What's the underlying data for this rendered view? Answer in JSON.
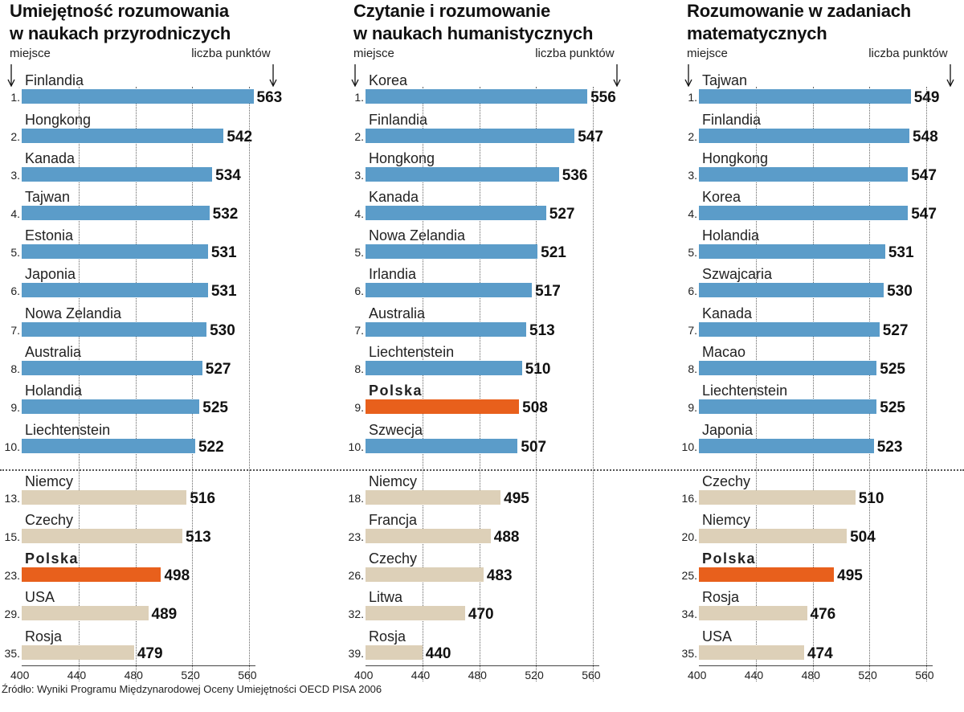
{
  "source": "Źródło: Wyniki Programu Międzynarodowej Oceny Umiejętności OECD PISA 2006",
  "labels": {
    "place": "miejsce",
    "points": "liczba punktów"
  },
  "colors": {
    "top_bar": "#5b9cc9",
    "other_bar": "#ddd0b8",
    "highlight_bar": "#e8601c"
  },
  "chart_data": [
    {
      "type": "bar",
      "title_lines": [
        "Umiejętność rozumowania",
        "w naukach przyrodniczych"
      ],
      "xlim": [
        400,
        580
      ],
      "xticks": [
        400,
        440,
        480,
        520,
        560
      ],
      "grid": true,
      "top10": [
        {
          "rank": "1.",
          "country": "Finlandia",
          "value": 563
        },
        {
          "rank": "2.",
          "country": "Hongkong",
          "value": 542
        },
        {
          "rank": "3.",
          "country": "Kanada",
          "value": 534
        },
        {
          "rank": "4.",
          "country": "Tajwan",
          "value": 532
        },
        {
          "rank": "5.",
          "country": "Estonia",
          "value": 531
        },
        {
          "rank": "6.",
          "country": "Japonia",
          "value": 531
        },
        {
          "rank": "7.",
          "country": "Nowa Zelandia",
          "value": 530
        },
        {
          "rank": "8.",
          "country": "Australia",
          "value": 527
        },
        {
          "rank": "9.",
          "country": "Holandia",
          "value": 525
        },
        {
          "rank": "10.",
          "country": "Liechtenstein",
          "value": 522
        }
      ],
      "others": [
        {
          "rank": "13.",
          "country": "Niemcy",
          "value": 516
        },
        {
          "rank": "15.",
          "country": "Czechy",
          "value": 513
        },
        {
          "rank": "23.",
          "country": "Polska",
          "value": 498,
          "highlight": true
        },
        {
          "rank": "29.",
          "country": "USA",
          "value": 489
        },
        {
          "rank": "35.",
          "country": "Rosja",
          "value": 479
        }
      ]
    },
    {
      "type": "bar",
      "title_lines": [
        "Czytanie i rozumowanie",
        "w naukach humanistycznych"
      ],
      "xlim": [
        400,
        580
      ],
      "xticks": [
        400,
        440,
        480,
        520,
        560
      ],
      "grid": true,
      "top10": [
        {
          "rank": "1.",
          "country": "Korea",
          "value": 556
        },
        {
          "rank": "2.",
          "country": "Finlandia",
          "value": 547
        },
        {
          "rank": "3.",
          "country": "Hongkong",
          "value": 536
        },
        {
          "rank": "4.",
          "country": "Kanada",
          "value": 527
        },
        {
          "rank": "5.",
          "country": "Nowa Zelandia",
          "value": 521
        },
        {
          "rank": "6.",
          "country": "Irlandia",
          "value": 517
        },
        {
          "rank": "7.",
          "country": "Australia",
          "value": 513
        },
        {
          "rank": "8.",
          "country": "Liechtenstein",
          "value": 510
        },
        {
          "rank": "9.",
          "country": "Polska",
          "value": 508,
          "highlight": true
        },
        {
          "rank": "10.",
          "country": "Szwecja",
          "value": 507
        }
      ],
      "others": [
        {
          "rank": "18.",
          "country": "Niemcy",
          "value": 495
        },
        {
          "rank": "23.",
          "country": "Francja",
          "value": 488
        },
        {
          "rank": "26.",
          "country": "Czechy",
          "value": 483
        },
        {
          "rank": "32.",
          "country": "Litwa",
          "value": 470
        },
        {
          "rank": "39.",
          "country": "Rosja",
          "value": 440
        }
      ]
    },
    {
      "type": "bar",
      "title_lines": [
        "Rozumowanie w zadaniach",
        "matematycznych"
      ],
      "xlim": [
        400,
        580
      ],
      "xticks": [
        400,
        440,
        480,
        520,
        560
      ],
      "grid": true,
      "top10": [
        {
          "rank": "1.",
          "country": "Tajwan",
          "value": 549
        },
        {
          "rank": "2.",
          "country": "Finlandia",
          "value": 548
        },
        {
          "rank": "3.",
          "country": "Hongkong",
          "value": 547
        },
        {
          "rank": "4.",
          "country": "Korea",
          "value": 547
        },
        {
          "rank": "5.",
          "country": "Holandia",
          "value": 531
        },
        {
          "rank": "6.",
          "country": "Szwajcaria",
          "value": 530
        },
        {
          "rank": "7.",
          "country": "Kanada",
          "value": 527
        },
        {
          "rank": "8.",
          "country": "Macao",
          "value": 525
        },
        {
          "rank": "9.",
          "country": "Liechtenstein",
          "value": 525
        },
        {
          "rank": "10.",
          "country": "Japonia",
          "value": 523
        }
      ],
      "others": [
        {
          "rank": "16.",
          "country": "Czechy",
          "value": 510
        },
        {
          "rank": "20.",
          "country": "Niemcy",
          "value": 504
        },
        {
          "rank": "25.",
          "country": "Polska",
          "value": 495,
          "highlight": true
        },
        {
          "rank": "34.",
          "country": "Rosja",
          "value": 476
        },
        {
          "rank": "35.",
          "country": "USA",
          "value": 474
        }
      ]
    }
  ]
}
